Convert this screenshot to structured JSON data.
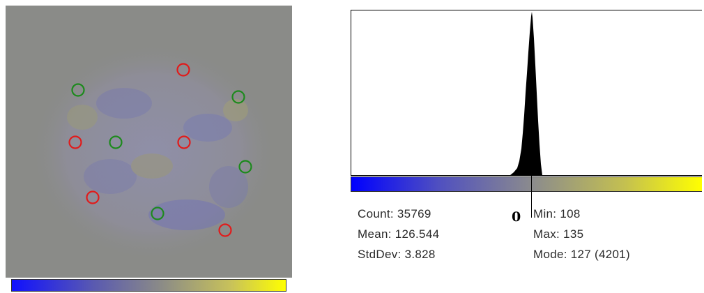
{
  "image_panel": {
    "red_markers": [
      {
        "cx": 255,
        "cy": 92
      },
      {
        "cx": 100,
        "cy": 196
      },
      {
        "cx": 256,
        "cy": 196
      },
      {
        "cx": 125,
        "cy": 275
      },
      {
        "cx": 315,
        "cy": 322
      }
    ],
    "green_markers": [
      {
        "cx": 104,
        "cy": 121
      },
      {
        "cx": 334,
        "cy": 131
      },
      {
        "cx": 158,
        "cy": 196
      },
      {
        "cx": 344,
        "cy": 231
      },
      {
        "cx": 218,
        "cy": 298
      }
    ],
    "colors": {
      "red": "#e11b1b",
      "green": "#1d8a1d",
      "background": "#8a8b88"
    }
  },
  "histogram": {
    "zero_label": "0",
    "stats": {
      "count": "Count: 35769",
      "mean": "Mean: 126.544",
      "stddev": "StdDev: 3.828",
      "min": "Min: 108",
      "max": "Max: 135",
      "mode": "Mode: 127 (4201)"
    }
  }
}
